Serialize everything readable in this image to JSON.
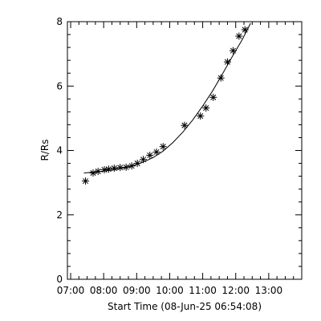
{
  "chart_data": {
    "type": "scatter",
    "title": "",
    "xlabel": "Start Time (08-Jun-25 06:54:08)",
    "ylabel": "R/Rs",
    "x_tick_labels": [
      "07:00",
      "08:00",
      "09:00",
      "10:00",
      "11:00",
      "12:00",
      "13:00"
    ],
    "x_tick_hours": [
      7,
      8,
      9,
      10,
      11,
      12,
      13
    ],
    "y_ticks": [
      0,
      2,
      4,
      6,
      8
    ],
    "xlim_hours": [
      6.902,
      14.0
    ],
    "ylim": [
      0,
      8
    ],
    "grid": false,
    "legend": "none",
    "series": [
      {
        "marker": "asterisk",
        "x_hours": [
          7.45,
          7.68,
          7.83,
          8.02,
          8.15,
          8.32,
          8.5,
          8.68,
          8.85,
          9.02,
          9.2,
          9.4,
          9.6,
          9.8,
          10.45,
          10.93,
          11.1,
          11.32,
          11.55,
          11.75,
          11.92,
          12.1,
          12.28
        ],
        "y": [
          3.05,
          3.3,
          3.35,
          3.4,
          3.42,
          3.45,
          3.47,
          3.48,
          3.52,
          3.6,
          3.72,
          3.85,
          3.95,
          4.12,
          4.78,
          5.07,
          5.32,
          5.65,
          6.25,
          6.75,
          7.1,
          7.55,
          7.75
        ]
      },
      {
        "style": "line",
        "x_hours": [
          7.4,
          7.7,
          8.0,
          8.3,
          8.6,
          8.9,
          9.2,
          9.5,
          9.8,
          10.1,
          10.4,
          10.7,
          11.0,
          11.3,
          11.6,
          11.9,
          12.2,
          12.45
        ],
        "y": [
          3.3,
          3.33,
          3.36,
          3.4,
          3.46,
          3.53,
          3.64,
          3.78,
          3.98,
          4.25,
          4.57,
          4.95,
          5.38,
          5.85,
          6.38,
          6.92,
          7.45,
          7.95
        ]
      }
    ]
  }
}
